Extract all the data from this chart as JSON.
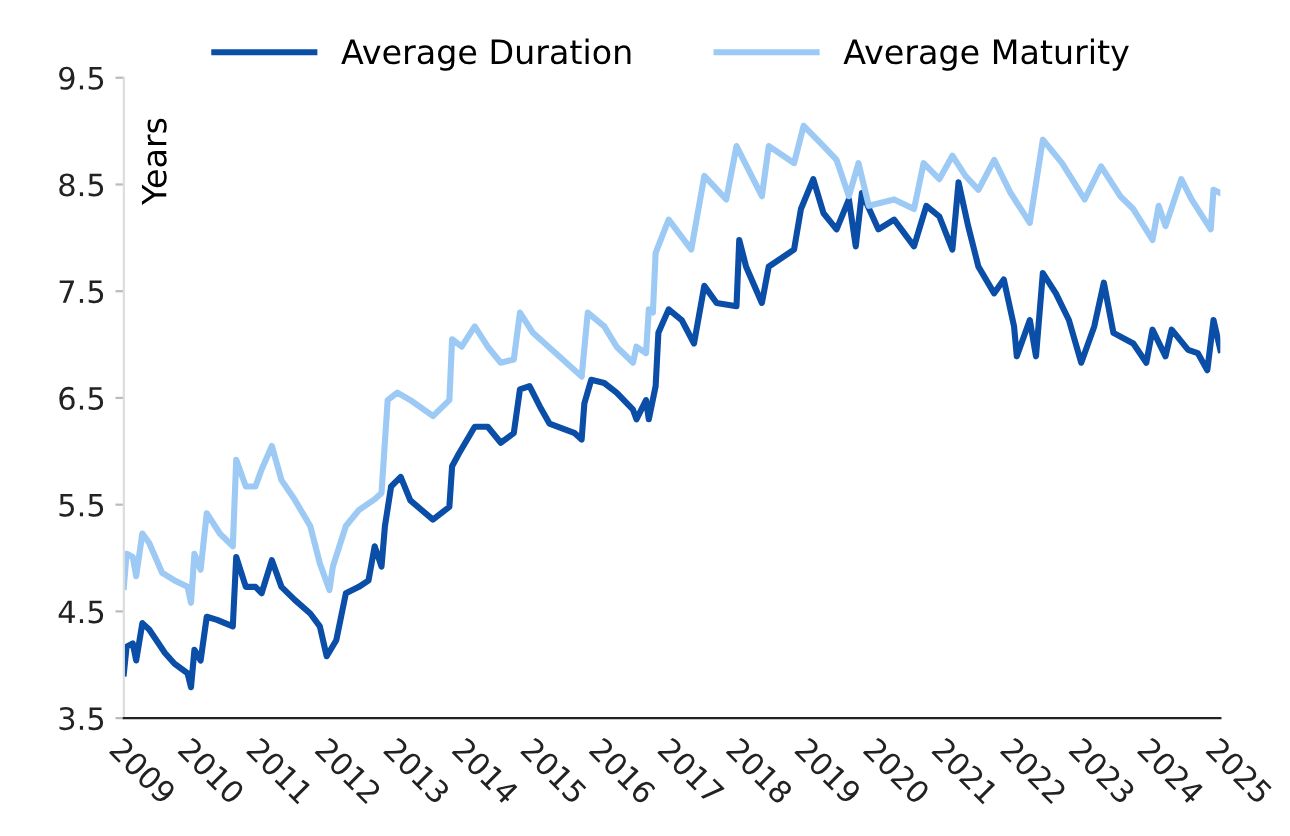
{
  "chart_data": {
    "type": "line",
    "ylabel": "Years",
    "xlim": [
      2009,
      2025
    ],
    "xticks": [
      2009,
      2010,
      2011,
      2012,
      2013,
      2014,
      2015,
      2016,
      2017,
      2018,
      2019,
      2020,
      2021,
      2022,
      2023,
      2024,
      2025
    ],
    "ylim": [
      3.5,
      9.5
    ],
    "yticks": [
      3.5,
      4.5,
      5.5,
      6.5,
      7.5,
      8.5,
      9.5
    ],
    "grid": false,
    "legend": "top",
    "marker": "none",
    "line_style": "solid",
    "series": [
      {
        "name": "Average Duration",
        "color": "#0b4ea8",
        "x": [
          2009.0,
          2009.04,
          2009.13,
          2009.18,
          2009.27,
          2009.37,
          2009.6,
          2009.74,
          2009.93,
          2009.98,
          2010.03,
          2010.12,
          2010.21,
          2010.36,
          2010.59,
          2010.64,
          2010.78,
          2010.92,
          2011.01,
          2011.16,
          2011.3,
          2011.49,
          2011.72,
          2011.86,
          2011.96,
          2012.1,
          2012.24,
          2012.43,
          2012.57,
          2012.66,
          2012.76,
          2012.81,
          2012.9,
          2013.04,
          2013.18,
          2013.51,
          2013.75,
          2013.79,
          2013.89,
          2014.12,
          2014.31,
          2014.5,
          2014.69,
          2014.78,
          2014.92,
          2015.07,
          2015.21,
          2015.58,
          2015.68,
          2015.72,
          2015.82,
          2016.01,
          2016.19,
          2016.43,
          2016.48,
          2016.62,
          2016.66,
          2016.76,
          2016.8,
          2016.95,
          2017.14,
          2017.32,
          2017.47,
          2017.65,
          2017.94,
          2017.98,
          2018.08,
          2018.31,
          2018.41,
          2018.78,
          2018.88,
          2019.06,
          2019.21,
          2019.4,
          2019.58,
          2019.68,
          2019.77,
          2020.01,
          2020.24,
          2020.53,
          2020.71,
          2020.9,
          2021.09,
          2021.18,
          2021.32,
          2021.47,
          2021.7,
          2021.84,
          2021.99,
          2022.03,
          2022.22,
          2022.31,
          2022.41,
          2022.6,
          2022.79,
          2022.97,
          2023.16,
          2023.3,
          2023.44,
          2023.73,
          2023.92,
          2024.01,
          2024.2,
          2024.29,
          2024.53,
          2024.67,
          2024.81,
          2024.9,
          2025.0
        ],
        "values": [
          3.92,
          4.17,
          4.2,
          4.04,
          4.39,
          4.33,
          4.11,
          4.01,
          3.92,
          3.79,
          4.14,
          4.04,
          4.45,
          4.42,
          4.36,
          5.01,
          4.73,
          4.73,
          4.67,
          4.98,
          4.73,
          4.61,
          4.48,
          4.36,
          4.08,
          4.23,
          4.67,
          4.73,
          4.79,
          5.11,
          4.92,
          5.3,
          5.67,
          5.76,
          5.54,
          5.36,
          5.48,
          5.86,
          5.98,
          6.23,
          6.23,
          6.08,
          6.17,
          6.58,
          6.61,
          6.42,
          6.26,
          6.17,
          6.11,
          6.45,
          6.67,
          6.64,
          6.55,
          6.39,
          6.3,
          6.48,
          6.3,
          6.61,
          7.11,
          7.33,
          7.23,
          7.01,
          7.55,
          7.39,
          7.36,
          7.98,
          7.73,
          7.39,
          7.73,
          7.89,
          8.27,
          8.55,
          8.23,
          8.08,
          8.36,
          7.92,
          8.42,
          8.08,
          8.17,
          7.92,
          8.3,
          8.2,
          7.89,
          8.52,
          8.11,
          7.73,
          7.48,
          7.61,
          7.17,
          6.89,
          7.23,
          6.89,
          7.67,
          7.48,
          7.23,
          6.83,
          7.17,
          7.58,
          7.11,
          7.01,
          6.83,
          7.14,
          6.89,
          7.14,
          6.95,
          6.92,
          6.76,
          7.23,
          6.95
        ]
      },
      {
        "name": "Average Maturity",
        "color": "#9ccaf5",
        "x": [
          2009.0,
          2009.04,
          2009.13,
          2009.18,
          2009.27,
          2009.37,
          2009.56,
          2009.74,
          2009.93,
          2009.98,
          2010.03,
          2010.12,
          2010.21,
          2010.4,
          2010.59,
          2010.64,
          2010.78,
          2010.92,
          2011.01,
          2011.16,
          2011.3,
          2011.49,
          2011.72,
          2011.86,
          2012.0,
          2012.05,
          2012.24,
          2012.43,
          2012.66,
          2012.76,
          2012.85,
          2012.99,
          2013.18,
          2013.51,
          2013.75,
          2013.79,
          2013.93,
          2014.12,
          2014.31,
          2014.5,
          2014.69,
          2014.78,
          2014.97,
          2015.25,
          2015.68,
          2015.77,
          2016.01,
          2016.19,
          2016.43,
          2016.48,
          2016.62,
          2016.66,
          2016.72,
          2016.76,
          2016.95,
          2017.28,
          2017.47,
          2017.79,
          2017.94,
          2018.31,
          2018.41,
          2018.78,
          2018.92,
          2019.21,
          2019.4,
          2019.58,
          2019.72,
          2019.87,
          2020.24,
          2020.53,
          2020.67,
          2020.9,
          2021.09,
          2021.28,
          2021.47,
          2021.7,
          2021.94,
          2022.22,
          2022.41,
          2022.69,
          2023.02,
          2023.26,
          2023.54,
          2023.73,
          2024.01,
          2024.1,
          2024.2,
          2024.43,
          2024.58,
          2024.86,
          2024.9,
          2025.0
        ],
        "values": [
          4.73,
          5.04,
          5.01,
          4.83,
          5.23,
          5.14,
          4.86,
          4.79,
          4.73,
          4.58,
          5.04,
          4.89,
          5.42,
          5.23,
          5.11,
          5.92,
          5.67,
          5.67,
          5.83,
          6.05,
          5.73,
          5.55,
          5.3,
          4.95,
          4.7,
          4.92,
          5.3,
          5.45,
          5.55,
          5.61,
          6.48,
          6.55,
          6.48,
          6.33,
          6.48,
          7.05,
          6.98,
          7.17,
          6.98,
          6.83,
          6.86,
          7.3,
          7.11,
          6.95,
          6.7,
          7.3,
          7.17,
          6.98,
          6.83,
          6.98,
          6.92,
          7.33,
          7.3,
          7.86,
          8.17,
          7.89,
          8.58,
          8.36,
          8.86,
          8.39,
          8.86,
          8.7,
          9.05,
          8.86,
          8.73,
          8.39,
          8.7,
          8.3,
          8.36,
          8.27,
          8.7,
          8.55,
          8.77,
          8.58,
          8.45,
          8.73,
          8.42,
          8.14,
          8.92,
          8.7,
          8.36,
          8.67,
          8.39,
          8.27,
          7.98,
          8.3,
          8.11,
          8.55,
          8.36,
          8.08,
          8.45,
          8.42
        ]
      }
    ]
  }
}
